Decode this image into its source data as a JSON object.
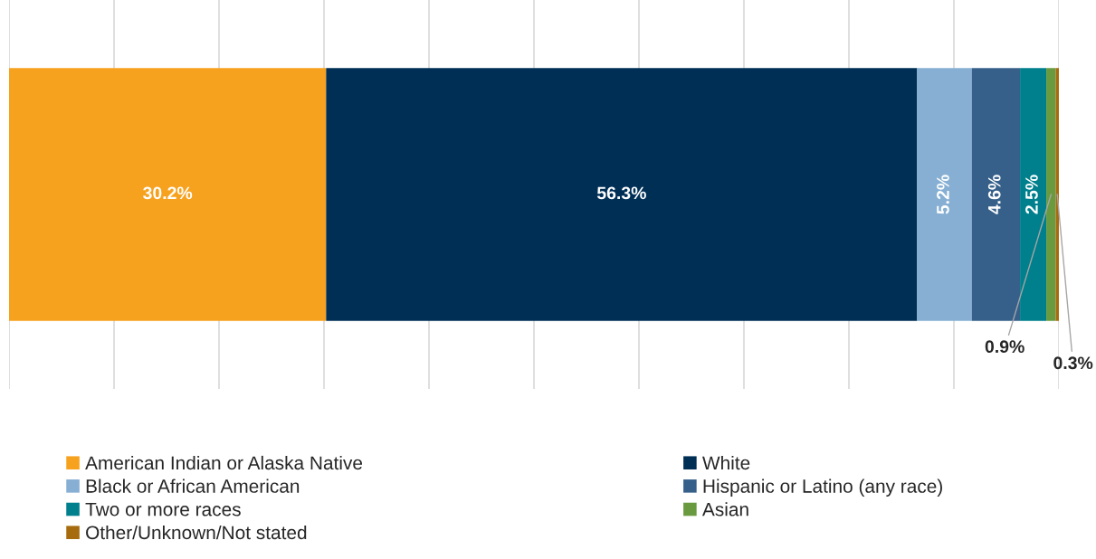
{
  "chart_data": {
    "type": "bar",
    "orientation": "horizontal",
    "stacked": true,
    "categories": [
      null
    ],
    "series": [
      {
        "name": "American Indian or Alaska Native",
        "color": "#f7a21e",
        "values": [
          30.2
        ],
        "value_labels": [
          "30.2%"
        ]
      },
      {
        "name": "White",
        "color": "#002f56",
        "values": [
          56.3
        ],
        "value_labels": [
          "56.3%"
        ]
      },
      {
        "name": "Black or African American",
        "color": "#86afd3",
        "values": [
          5.2
        ],
        "value_labels": [
          "5.2%"
        ]
      },
      {
        "name": "Hispanic or Latino (any race)",
        "color": "#36608a",
        "values": [
          4.6
        ],
        "value_labels": [
          "4.6%"
        ]
      },
      {
        "name": "Two or more races",
        "color": "#007f8c",
        "values": [
          2.5
        ],
        "value_labels": [
          "2.5%"
        ]
      },
      {
        "name": "Asian",
        "color": "#6a9a3f",
        "values": [
          0.9
        ],
        "value_labels": [
          "0.9%"
        ]
      },
      {
        "name": "Other/Unknown/Not stated",
        "color": "#a66b0e",
        "values": [
          0.3
        ],
        "value_labels": [
          "0.3%"
        ]
      }
    ],
    "grid": "x",
    "legend": "bottom"
  }
}
